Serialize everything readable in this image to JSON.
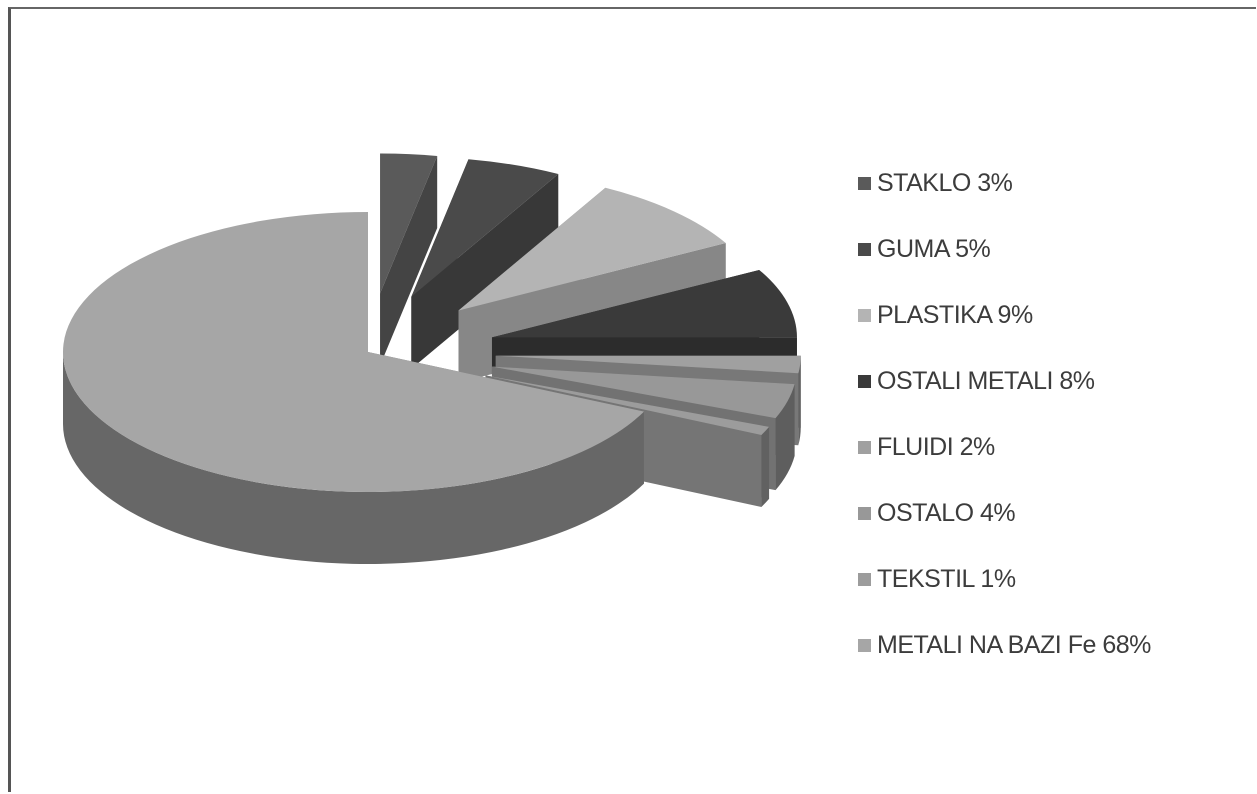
{
  "chart_data": {
    "type": "pie",
    "legend_position": "right",
    "categories": [
      "STAKLO",
      "GUMA",
      "PLASTIKA",
      "OSTALI METALI",
      "FLUIDI",
      "OSTALO",
      "TEKSTIL",
      "METALI NA BAZI Fe"
    ],
    "values": [
      3,
      5,
      9,
      8,
      2,
      4,
      1,
      68
    ],
    "legend_labels": [
      "STAKLO 3%",
      "GUMA 5%",
      "PLASTIKA 9%",
      "OSTALI METALI 8%",
      "FLUIDI 2%",
      "OSTALO 4%",
      "TEKSTIL 1%",
      "METALI NA BAZI Fe 68%"
    ],
    "colors": [
      "#5a5a5a",
      "#4a4a4a",
      "#b4b4b4",
      "#3a3a3a",
      "#a0a0a0",
      "#989898",
      "#9c9c9c",
      "#a6a6a6"
    ],
    "exploded": [
      true,
      true,
      true,
      true,
      true,
      true,
      true,
      false
    ]
  }
}
